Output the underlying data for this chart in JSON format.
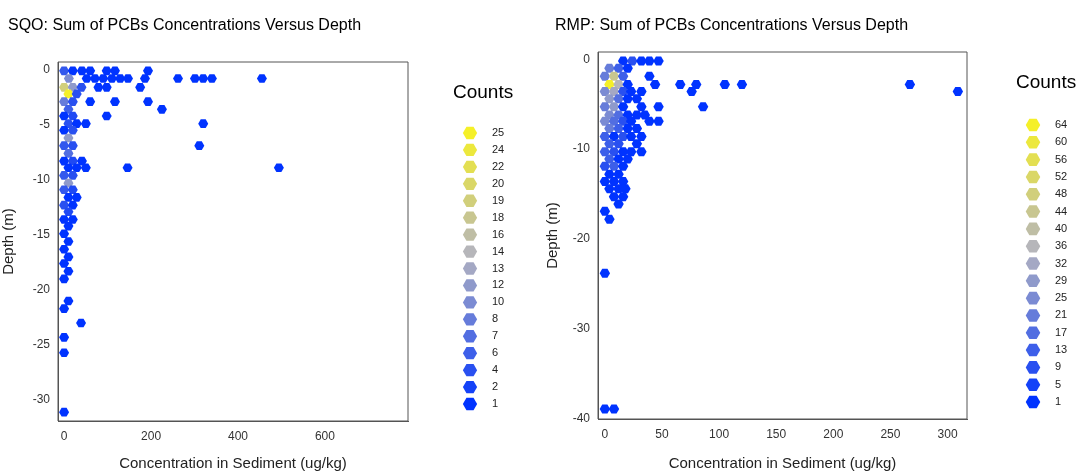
{
  "chart_data": [
    {
      "type": "scatter",
      "title": "SQO: Sum of PCBs Concentrations Versus Depth",
      "xlabel": "Concentration in Sediment (ug/kg)",
      "ylabel": "Depth (m)",
      "clabel": "Counts",
      "x": [
        0,
        20,
        41,
        60,
        98,
        117,
        193,
        11,
        52,
        71,
        90,
        110,
        129,
        147,
        186,
        262,
        301,
        320,
        340,
        455,
        0,
        20,
        40,
        79,
        98,
        175,
        10,
        29,
        0,
        20,
        60,
        117,
        193,
        10,
        225,
        0,
        20,
        98,
        10,
        29,
        50,
        320,
        0,
        20,
        10,
        0,
        20,
        311,
        10,
        0,
        20,
        41,
        10,
        29,
        50,
        146,
        494,
        0,
        20,
        10,
        0,
        20,
        10,
        29,
        0,
        20,
        10,
        0,
        20,
        10,
        0,
        10,
        0,
        10,
        0,
        10,
        0,
        10,
        0,
        39,
        0,
        0,
        0
      ],
      "values": [
        -0.1,
        -0.1,
        -0.1,
        -0.1,
        -0.1,
        -0.1,
        -0.1,
        -0.8,
        -0.8,
        -0.8,
        -0.8,
        -0.8,
        -0.8,
        -0.8,
        -0.8,
        -0.8,
        -0.8,
        -0.8,
        -0.8,
        -0.8,
        -1.6,
        -1.6,
        -1.6,
        -1.6,
        -1.6,
        -1.6,
        -2.2,
        -2.2,
        -2.9,
        -2.9,
        -2.9,
        -2.9,
        -2.9,
        -3.6,
        -3.6,
        -4.2,
        -4.2,
        -4.2,
        -4.9,
        -4.9,
        -4.9,
        -4.9,
        -5.5,
        -5.5,
        -6.2,
        -6.9,
        -6.9,
        -6.9,
        -7.6,
        -8.3,
        -8.3,
        -8.3,
        -8.9,
        -8.9,
        -8.9,
        -8.9,
        -8.9,
        -9.6,
        -9.6,
        -10.3,
        -10.9,
        -10.9,
        -11.6,
        -11.6,
        -12.3,
        -12.3,
        -12.9,
        -13.6,
        -13.6,
        -14.2,
        -14.9,
        -15.6,
        -16.3,
        -17.0,
        -17.6,
        -18.3,
        -19.0,
        -21.0,
        -21.7,
        -23.0,
        -24.3,
        -25.7,
        -31.1
      ],
      "cvalues": [
        5,
        1,
        1,
        1,
        1,
        1,
        1,
        10,
        1,
        1,
        1,
        1,
        1,
        1,
        1,
        1,
        1,
        1,
        1,
        1,
        19,
        12,
        4,
        1,
        1,
        1,
        25,
        4,
        8,
        4,
        1,
        1,
        1,
        6,
        1,
        1,
        3,
        1,
        4,
        1,
        1,
        1,
        1,
        4,
        12,
        5,
        4,
        1,
        7,
        1,
        3,
        1,
        1,
        1,
        1,
        1,
        1,
        5,
        4,
        12,
        5,
        3,
        1,
        1,
        4,
        1,
        3,
        1,
        1,
        1,
        1,
        1,
        1,
        1,
        1,
        1,
        1,
        1,
        1,
        1,
        1,
        1,
        1
      ],
      "xlim": [
        -14,
        791
      ],
      "ylim": [
        -31.9,
        0.7
      ],
      "xticks": [
        0,
        200,
        400,
        600
      ],
      "yticks": [
        0,
        -5,
        -10,
        -15,
        -20,
        -25,
        -30
      ],
      "cticks": [
        25,
        24,
        22,
        20,
        19,
        18,
        16,
        14,
        13,
        12,
        10,
        8,
        7,
        6,
        4,
        2,
        1
      ]
    },
    {
      "type": "scatter",
      "title": "RMP: Sum of PCBs Concentrations Versus Depth",
      "xlabel": "Concentration in Sediment (ug/kg)",
      "ylabel": "Depth (m)",
      "clabel": "Counts",
      "x": [
        16,
        24,
        32,
        39,
        47,
        4,
        12,
        20,
        0,
        8,
        16,
        39,
        4,
        12,
        20,
        44,
        66,
        80,
        105,
        120,
        267,
        0,
        8,
        16,
        23,
        32,
        76,
        309,
        4,
        12,
        20,
        28,
        0,
        8,
        16,
        32,
        47,
        86,
        4,
        12,
        20,
        28,
        35,
        0,
        8,
        16,
        23,
        39,
        47,
        4,
        12,
        20,
        28,
        0,
        8,
        16,
        23,
        32,
        4,
        12,
        28,
        0,
        8,
        16,
        23,
        32,
        4,
        12,
        20,
        0,
        8,
        16,
        4,
        12,
        0,
        8,
        16,
        4,
        12,
        18,
        8,
        16,
        12,
        0,
        4,
        0,
        0,
        8
      ],
      "values": [
        -0.2,
        -0.2,
        -0.2,
        -0.2,
        -0.2,
        -1.0,
        -1.0,
        -1.0,
        -1.9,
        -1.9,
        -1.9,
        -1.9,
        -2.8,
        -2.8,
        -2.8,
        -2.8,
        -2.8,
        -2.8,
        -2.8,
        -2.8,
        -2.8,
        -3.6,
        -3.6,
        -3.6,
        -3.6,
        -3.6,
        -3.6,
        -3.6,
        -4.4,
        -4.4,
        -4.4,
        -4.4,
        -5.3,
        -5.3,
        -5.3,
        -5.3,
        -5.3,
        -5.3,
        -6.2,
        -6.2,
        -6.2,
        -6.2,
        -6.2,
        -6.9,
        -6.9,
        -6.9,
        -6.9,
        -6.9,
        -6.9,
        -7.7,
        -7.7,
        -7.7,
        -7.7,
        -8.6,
        -8.6,
        -8.6,
        -8.6,
        -8.6,
        -9.4,
        -9.4,
        -9.4,
        -10.3,
        -10.3,
        -10.3,
        -10.3,
        -10.3,
        -11.1,
        -11.1,
        -11.1,
        -11.9,
        -11.9,
        -11.9,
        -12.8,
        -12.8,
        -13.6,
        -13.6,
        -13.6,
        -14.4,
        -14.4,
        -14.4,
        -15.3,
        -15.3,
        -16.1,
        -16.9,
        -17.8,
        -23.8,
        -38.9,
        -38.9
      ],
      "cvalues": [
        1,
        9,
        1,
        1,
        1,
        21,
        13,
        1,
        21,
        44,
        13,
        1,
        64,
        36,
        1,
        1,
        1,
        1,
        1,
        1,
        1,
        25,
        32,
        9,
        1,
        1,
        1,
        1,
        29,
        17,
        1,
        1,
        21,
        29,
        1,
        1,
        1,
        1,
        25,
        17,
        1,
        1,
        1,
        25,
        17,
        9,
        1,
        1,
        1,
        21,
        13,
        1,
        1,
        13,
        1,
        9,
        1,
        1,
        13,
        9,
        1,
        13,
        9,
        1,
        1,
        1,
        13,
        1,
        1,
        9,
        13,
        1,
        1,
        1,
        1,
        1,
        1,
        1,
        1,
        1,
        1,
        1,
        1,
        1,
        1,
        1,
        1,
        1
      ],
      "xlim": [
        -6,
        317
      ],
      "ylim": [
        -40,
        0.8
      ],
      "xticks": [
        0,
        50,
        100,
        150,
        200,
        250,
        300
      ],
      "yticks": [
        0,
        -10,
        -20,
        -30,
        -40
      ],
      "cticks": [
        64,
        60,
        56,
        52,
        48,
        44,
        40,
        36,
        32,
        29,
        25,
        21,
        17,
        13,
        9,
        5,
        1
      ]
    }
  ]
}
